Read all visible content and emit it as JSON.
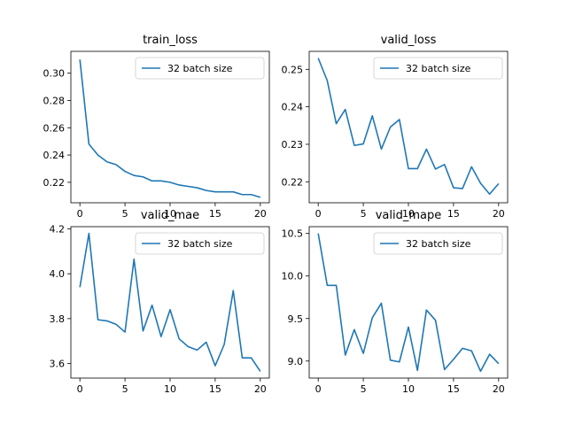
{
  "chart_data": [
    {
      "type": "line",
      "title": "train_loss",
      "xlabel": "",
      "ylabel": "",
      "xlim": [
        -1,
        21
      ],
      "ylim": [
        0.205,
        0.316
      ],
      "xticks": [
        0,
        5,
        10,
        15,
        20
      ],
      "xtick_labels": [
        "0",
        "5",
        "10",
        "15",
        "20"
      ],
      "yticks": [
        0.22,
        0.24,
        0.26,
        0.28,
        0.3
      ],
      "ytick_labels": [
        "0.22",
        "0.24",
        "0.26",
        "0.28",
        "0.30"
      ],
      "grid": false,
      "legend": "top-right",
      "x": [
        0,
        1,
        2,
        3,
        4,
        5,
        6,
        7,
        8,
        9,
        10,
        11,
        12,
        13,
        14,
        15,
        16,
        17,
        18,
        19,
        20
      ],
      "series": [
        {
          "name": "32 batch size",
          "color": "#1f77b4",
          "values": [
            0.31,
            0.248,
            0.24,
            0.235,
            0.233,
            0.228,
            0.225,
            0.224,
            0.221,
            0.221,
            0.22,
            0.218,
            0.217,
            0.216,
            0.214,
            0.213,
            0.213,
            0.213,
            0.211,
            0.211,
            0.209
          ]
        }
      ]
    },
    {
      "type": "line",
      "title": "valid_loss",
      "xlabel": "",
      "ylabel": "",
      "xlim": [
        -1,
        21
      ],
      "ylim": [
        0.2144,
        0.2548
      ],
      "xticks": [
        0,
        5,
        10,
        15,
        20
      ],
      "xtick_labels": [
        "0",
        "5",
        "10",
        "15",
        "20"
      ],
      "yticks": [
        0.22,
        0.23,
        0.24,
        0.25
      ],
      "ytick_labels": [
        "0.22",
        "0.23",
        "0.24",
        "0.25"
      ],
      "grid": false,
      "legend": "top-right",
      "x": [
        0,
        1,
        2,
        3,
        4,
        5,
        6,
        7,
        8,
        9,
        10,
        11,
        12,
        13,
        14,
        15,
        16,
        17,
        18,
        19,
        20
      ],
      "series": [
        {
          "name": "32 batch size",
          "color": "#1f77b4",
          "values": [
            0.253,
            0.247,
            0.2355,
            0.2393,
            0.2297,
            0.2301,
            0.2376,
            0.2287,
            0.2346,
            0.2366,
            0.2235,
            0.2235,
            0.2287,
            0.2234,
            0.2246,
            0.2184,
            0.2182,
            0.224,
            0.2196,
            0.2167,
            0.2195
          ]
        }
      ]
    },
    {
      "type": "line",
      "title": "valid_mae",
      "xlabel": "",
      "ylabel": "",
      "xlim": [
        -1,
        21
      ],
      "ylim": [
        3.535,
        4.21
      ],
      "xticks": [
        0,
        5,
        10,
        15,
        20
      ],
      "xtick_labels": [
        "0",
        "5",
        "10",
        "15",
        "20"
      ],
      "yticks": [
        3.6,
        3.8,
        4.0,
        4.2
      ],
      "ytick_labels": [
        "3.6",
        "3.8",
        "4.0",
        "4.2"
      ],
      "grid": false,
      "legend": "top-right",
      "x": [
        0,
        1,
        2,
        3,
        4,
        5,
        6,
        7,
        8,
        9,
        10,
        11,
        12,
        13,
        14,
        15,
        16,
        17,
        18,
        19,
        20
      ],
      "series": [
        {
          "name": "32 batch size",
          "color": "#1f77b4",
          "values": [
            3.94,
            4.18,
            3.795,
            3.79,
            3.775,
            3.74,
            4.065,
            3.745,
            3.86,
            3.72,
            3.84,
            3.71,
            3.675,
            3.66,
            3.695,
            3.59,
            3.685,
            3.925,
            3.625,
            3.625,
            3.565
          ]
        }
      ]
    },
    {
      "type": "line",
      "title": "valid_mape",
      "xlabel": "",
      "ylabel": "",
      "xlim": [
        -1,
        21
      ],
      "ylim": [
        8.8,
        10.58
      ],
      "xticks": [
        0,
        5,
        10,
        15,
        20
      ],
      "xtick_labels": [
        "0",
        "5",
        "10",
        "15",
        "20"
      ],
      "yticks": [
        9.0,
        9.5,
        10.0,
        10.5
      ],
      "ytick_labels": [
        "9.0",
        "9.5",
        "10.0",
        "10.5"
      ],
      "grid": false,
      "legend": "top-right",
      "x": [
        0,
        1,
        2,
        3,
        4,
        5,
        6,
        7,
        8,
        9,
        10,
        11,
        12,
        13,
        14,
        15,
        16,
        17,
        18,
        19,
        20
      ],
      "series": [
        {
          "name": "32 batch size",
          "color": "#1f77b4",
          "values": [
            10.5,
            9.89,
            9.89,
            9.07,
            9.37,
            9.09,
            9.51,
            9.68,
            9.01,
            8.99,
            9.4,
            8.89,
            9.6,
            9.48,
            8.9,
            9.02,
            9.15,
            9.12,
            8.88,
            9.08,
            8.97
          ]
        }
      ]
    }
  ]
}
